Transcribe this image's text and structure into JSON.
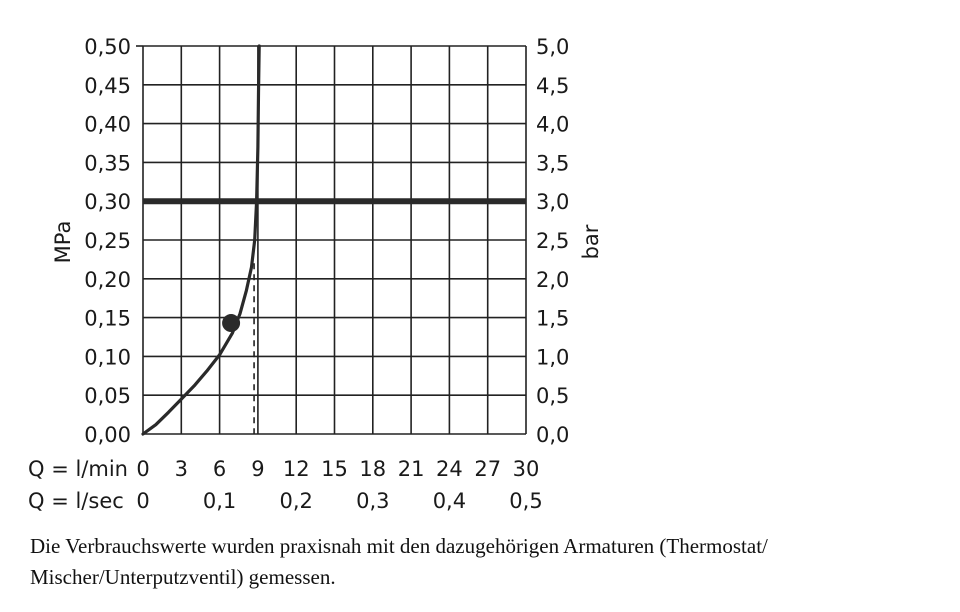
{
  "chart_data": {
    "type": "line",
    "left_axis": {
      "label": "MPa",
      "ticks": [
        "0,00",
        "0,05",
        "0,10",
        "0,15",
        "0,20",
        "0,25",
        "0,30",
        "0,35",
        "0,40",
        "0,45",
        "0,50"
      ],
      "range": [
        0,
        0.5
      ]
    },
    "right_axis": {
      "label": "bar",
      "ticks": [
        "0,0",
        "0,5",
        "1,0",
        "1,5",
        "2,0",
        "2,5",
        "3,0",
        "3,5",
        "4,0",
        "4,5",
        "5,0"
      ],
      "range": [
        0,
        5
      ]
    },
    "x_axis_lmin": {
      "label": "Q = l/min",
      "ticks": [
        "0",
        "3",
        "6",
        "9",
        "12",
        "15",
        "18",
        "21",
        "24",
        "27",
        "30"
      ],
      "range": [
        0,
        30
      ]
    },
    "x_axis_lsec": {
      "label": "Q = l/sec",
      "ticks": [
        "0",
        "0,1",
        "0,2",
        "0,3",
        "0,4",
        "0,5"
      ],
      "range": [
        0,
        0.5
      ]
    },
    "grid": true,
    "series": [
      {
        "x": [
          0,
          1,
          2,
          3,
          4,
          5,
          6,
          7,
          7.6,
          8.1,
          8.5,
          8.75,
          8.9,
          9.0,
          9.05,
          9.1
        ],
        "y": [
          0,
          0.012,
          0.028,
          0.045,
          0.062,
          0.081,
          0.102,
          0.13,
          0.155,
          0.185,
          0.215,
          0.25,
          0.3,
          0.37,
          0.44,
          0.5
        ]
      }
    ],
    "reference_line_pressure_mpa": 0.3,
    "marker_point": {
      "x": 6.9,
      "y": 0.143
    },
    "dashed_flow_marker": {
      "x": 8.7,
      "y_top": 0.22
    }
  },
  "caption": "Die Verbrauchswerte wurden praxisnah mit den dazugehörigen Armaturen (Thermostat/ Mischer/Unterputzventil) gemessen."
}
